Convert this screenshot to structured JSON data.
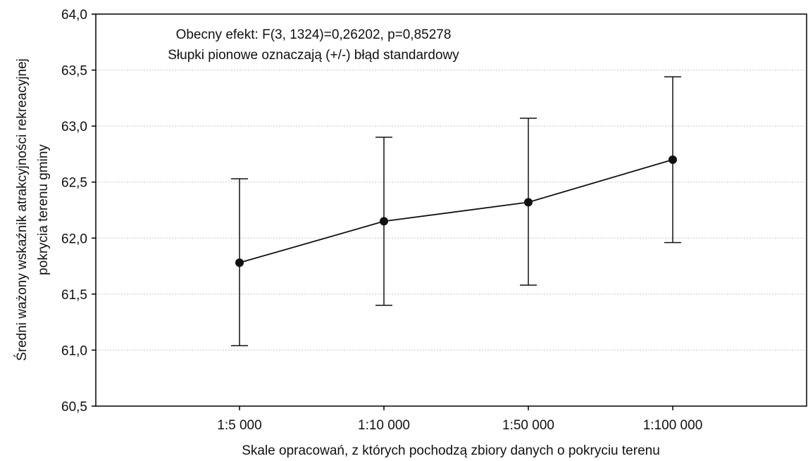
{
  "chart_data": {
    "type": "line",
    "title": "",
    "annotations": [
      "Obecny efekt: F(3, 1324)=0,26202, p=0,85278",
      "Słupki pionowe oznaczają (+/-) błąd standardowy"
    ],
    "xlabel": "Skale opracowań, z których pochodzą zbiory danych o pokryciu terenu",
    "ylabel": [
      "Średni ważony wskaźnik atrakcyjności rekreacyjnej",
      "pokrycia terenu gminy"
    ],
    "categories": [
      "1:5 000",
      "1:10 000",
      "1:50 000",
      "1:100 000"
    ],
    "series": [
      {
        "values": [
          61.78,
          62.15,
          62.32,
          62.7
        ],
        "error_low": [
          61.04,
          61.4,
          61.58,
          61.96
        ],
        "error_high": [
          62.53,
          62.9,
          63.07,
          63.44
        ]
      }
    ],
    "ylim": [
      60.5,
      64.0
    ],
    "yticks": [
      "60,5",
      "61,0",
      "61,5",
      "62,0",
      "62,5",
      "63,0",
      "63,5",
      "64,0"
    ],
    "ytick_values": [
      60.5,
      61.0,
      61.5,
      62.0,
      62.5,
      63.0,
      63.5,
      64.0
    ],
    "grid": true,
    "colors": {
      "line": "#111111",
      "grid": "#c8c8c8",
      "frame": "#000000"
    }
  }
}
